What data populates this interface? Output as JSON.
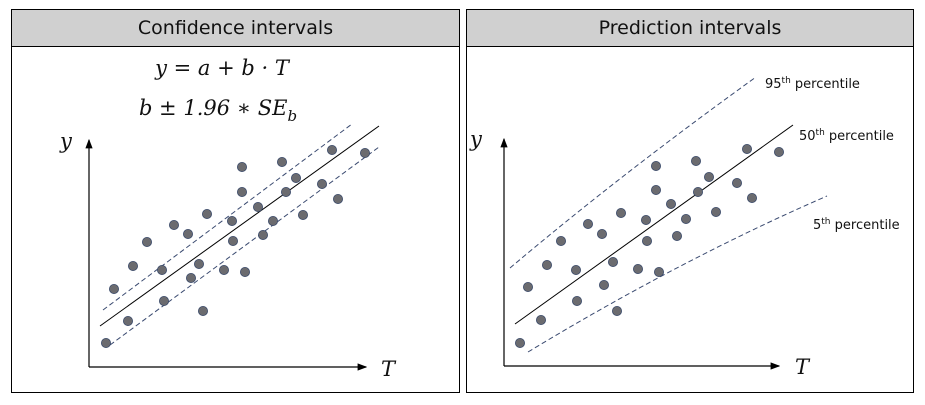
{
  "left_panel": {
    "title": "Confidence intervals",
    "equation_1": "y = a + b · T",
    "equation_2_base": "b ± 1.96  ∗ SE",
    "equation_2_sub": "b",
    "y_axis_label": "y",
    "x_axis_label": "T"
  },
  "right_panel": {
    "title": "Prediction intervals",
    "y_axis_label": "y",
    "x_axis_label": "T",
    "p95_num": "95",
    "p50_num": "50",
    "p5_num": "5",
    "ordinal_suffix": "th",
    "percentile_word": " percentile"
  },
  "colors": {
    "point_fill": "#6b6b6f",
    "point_stroke": "#3a4a6a",
    "dash": "#3a4a70",
    "header": "#d0d0d0"
  }
}
